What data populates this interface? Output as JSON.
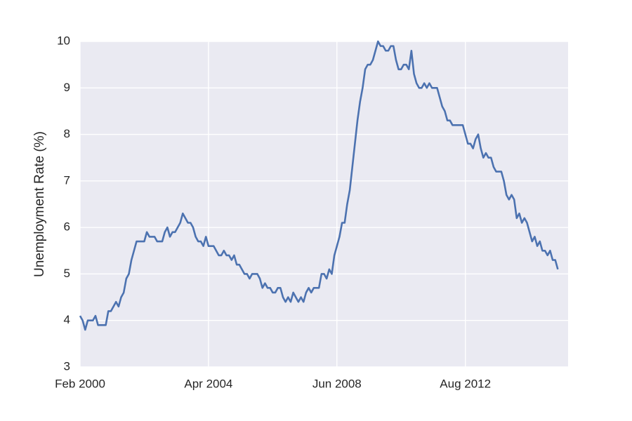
{
  "chart_data": {
    "type": "line",
    "ylabel": "Unemployment Rate (%)",
    "x": [
      "2000-02",
      "2000-03",
      "2000-04",
      "2000-05",
      "2000-06",
      "2000-07",
      "2000-08",
      "2000-09",
      "2000-10",
      "2000-11",
      "2000-12",
      "2001-01",
      "2001-02",
      "2001-03",
      "2001-04",
      "2001-05",
      "2001-06",
      "2001-07",
      "2001-08",
      "2001-09",
      "2001-10",
      "2001-11",
      "2001-12",
      "2002-01",
      "2002-02",
      "2002-03",
      "2002-04",
      "2002-05",
      "2002-06",
      "2002-07",
      "2002-08",
      "2002-09",
      "2002-10",
      "2002-11",
      "2002-12",
      "2003-01",
      "2003-02",
      "2003-03",
      "2003-04",
      "2003-05",
      "2003-06",
      "2003-07",
      "2003-08",
      "2003-09",
      "2003-10",
      "2003-11",
      "2003-12",
      "2004-01",
      "2004-02",
      "2004-03",
      "2004-04",
      "2004-05",
      "2004-06",
      "2004-07",
      "2004-08",
      "2004-09",
      "2004-10",
      "2004-11",
      "2004-12",
      "2005-01",
      "2005-02",
      "2005-03",
      "2005-04",
      "2005-05",
      "2005-06",
      "2005-07",
      "2005-08",
      "2005-09",
      "2005-10",
      "2005-11",
      "2005-12",
      "2006-01",
      "2006-02",
      "2006-03",
      "2006-04",
      "2006-05",
      "2006-06",
      "2006-07",
      "2006-08",
      "2006-09",
      "2006-10",
      "2006-11",
      "2006-12",
      "2007-01",
      "2007-02",
      "2007-03",
      "2007-04",
      "2007-05",
      "2007-06",
      "2007-07",
      "2007-08",
      "2007-09",
      "2007-10",
      "2007-11",
      "2007-12",
      "2008-01",
      "2008-02",
      "2008-03",
      "2008-04",
      "2008-05",
      "2008-06",
      "2008-07",
      "2008-08",
      "2008-09",
      "2008-10",
      "2008-11",
      "2008-12",
      "2009-01",
      "2009-02",
      "2009-03",
      "2009-04",
      "2009-05",
      "2009-06",
      "2009-07",
      "2009-08",
      "2009-09",
      "2009-10",
      "2009-11",
      "2009-12",
      "2010-01",
      "2010-02",
      "2010-03",
      "2010-04",
      "2010-05",
      "2010-06",
      "2010-07",
      "2010-08",
      "2010-09",
      "2010-10",
      "2010-11",
      "2010-12",
      "2011-01",
      "2011-02",
      "2011-03",
      "2011-04",
      "2011-05",
      "2011-06",
      "2011-07",
      "2011-08",
      "2011-09",
      "2011-10",
      "2011-11",
      "2011-12",
      "2012-01",
      "2012-02",
      "2012-03",
      "2012-04",
      "2012-05",
      "2012-06",
      "2012-07",
      "2012-08",
      "2012-09",
      "2012-10",
      "2012-11",
      "2012-12",
      "2013-01",
      "2013-02",
      "2013-03",
      "2013-04",
      "2013-05",
      "2013-06",
      "2013-07",
      "2013-08",
      "2013-09",
      "2013-10",
      "2013-11",
      "2013-12",
      "2014-01",
      "2014-02",
      "2014-03",
      "2014-04",
      "2014-05",
      "2014-06",
      "2014-07",
      "2014-08",
      "2014-09",
      "2014-10",
      "2014-11",
      "2014-12",
      "2015-01",
      "2015-02",
      "2015-03",
      "2015-04",
      "2015-05",
      "2015-06",
      "2015-07",
      "2015-08"
    ],
    "values": [
      4.1,
      4.0,
      3.8,
      4.0,
      4.0,
      4.0,
      4.1,
      3.9,
      3.9,
      3.9,
      3.9,
      4.2,
      4.2,
      4.3,
      4.4,
      4.3,
      4.5,
      4.6,
      4.9,
      5.0,
      5.3,
      5.5,
      5.7,
      5.7,
      5.7,
      5.7,
      5.9,
      5.8,
      5.8,
      5.8,
      5.7,
      5.7,
      5.7,
      5.9,
      6.0,
      5.8,
      5.9,
      5.9,
      6.0,
      6.1,
      6.3,
      6.2,
      6.1,
      6.1,
      6.0,
      5.8,
      5.7,
      5.7,
      5.6,
      5.8,
      5.6,
      5.6,
      5.6,
      5.5,
      5.4,
      5.4,
      5.5,
      5.4,
      5.4,
      5.3,
      5.4,
      5.2,
      5.2,
      5.1,
      5.0,
      5.0,
      4.9,
      5.0,
      5.0,
      5.0,
      4.9,
      4.7,
      4.8,
      4.7,
      4.7,
      4.6,
      4.6,
      4.7,
      4.7,
      4.5,
      4.4,
      4.5,
      4.4,
      4.6,
      4.5,
      4.4,
      4.5,
      4.4,
      4.6,
      4.7,
      4.6,
      4.7,
      4.7,
      4.7,
      5.0,
      5.0,
      4.9,
      5.1,
      5.0,
      5.4,
      5.6,
      5.8,
      6.1,
      6.1,
      6.5,
      6.8,
      7.3,
      7.8,
      8.3,
      8.7,
      9.0,
      9.4,
      9.5,
      9.5,
      9.6,
      9.8,
      10.0,
      9.9,
      9.9,
      9.8,
      9.8,
      9.9,
      9.9,
      9.6,
      9.4,
      9.4,
      9.5,
      9.5,
      9.4,
      9.8,
      9.3,
      9.1,
      9.0,
      9.0,
      9.1,
      9.0,
      9.1,
      9.0,
      9.0,
      9.0,
      8.8,
      8.6,
      8.5,
      8.3,
      8.3,
      8.2,
      8.2,
      8.2,
      8.2,
      8.2,
      8.0,
      7.8,
      7.8,
      7.7,
      7.9,
      8.0,
      7.7,
      7.5,
      7.6,
      7.5,
      7.5,
      7.3,
      7.2,
      7.2,
      7.2,
      7.0,
      6.7,
      6.6,
      6.7,
      6.6,
      6.2,
      6.3,
      6.1,
      6.2,
      6.1,
      5.9,
      5.7,
      5.8,
      5.6,
      5.7,
      5.5,
      5.5,
      5.4,
      5.5,
      5.3,
      5.3,
      5.1
    ],
    "color": "#4c72b0",
    "xlim": [
      "2000-02",
      "2015-12"
    ],
    "xticks": [
      {
        "value": "2000-02",
        "label": "Feb 2000"
      },
      {
        "value": "2004-04",
        "label": "Apr 2004"
      },
      {
        "value": "2008-06",
        "label": "Jun 2008"
      },
      {
        "value": "2012-08",
        "label": "Aug 2012"
      }
    ],
    "ylim": [
      3,
      10
    ],
    "yticks": [
      3,
      4,
      5,
      6,
      7,
      8,
      9,
      10
    ],
    "grid": true
  }
}
